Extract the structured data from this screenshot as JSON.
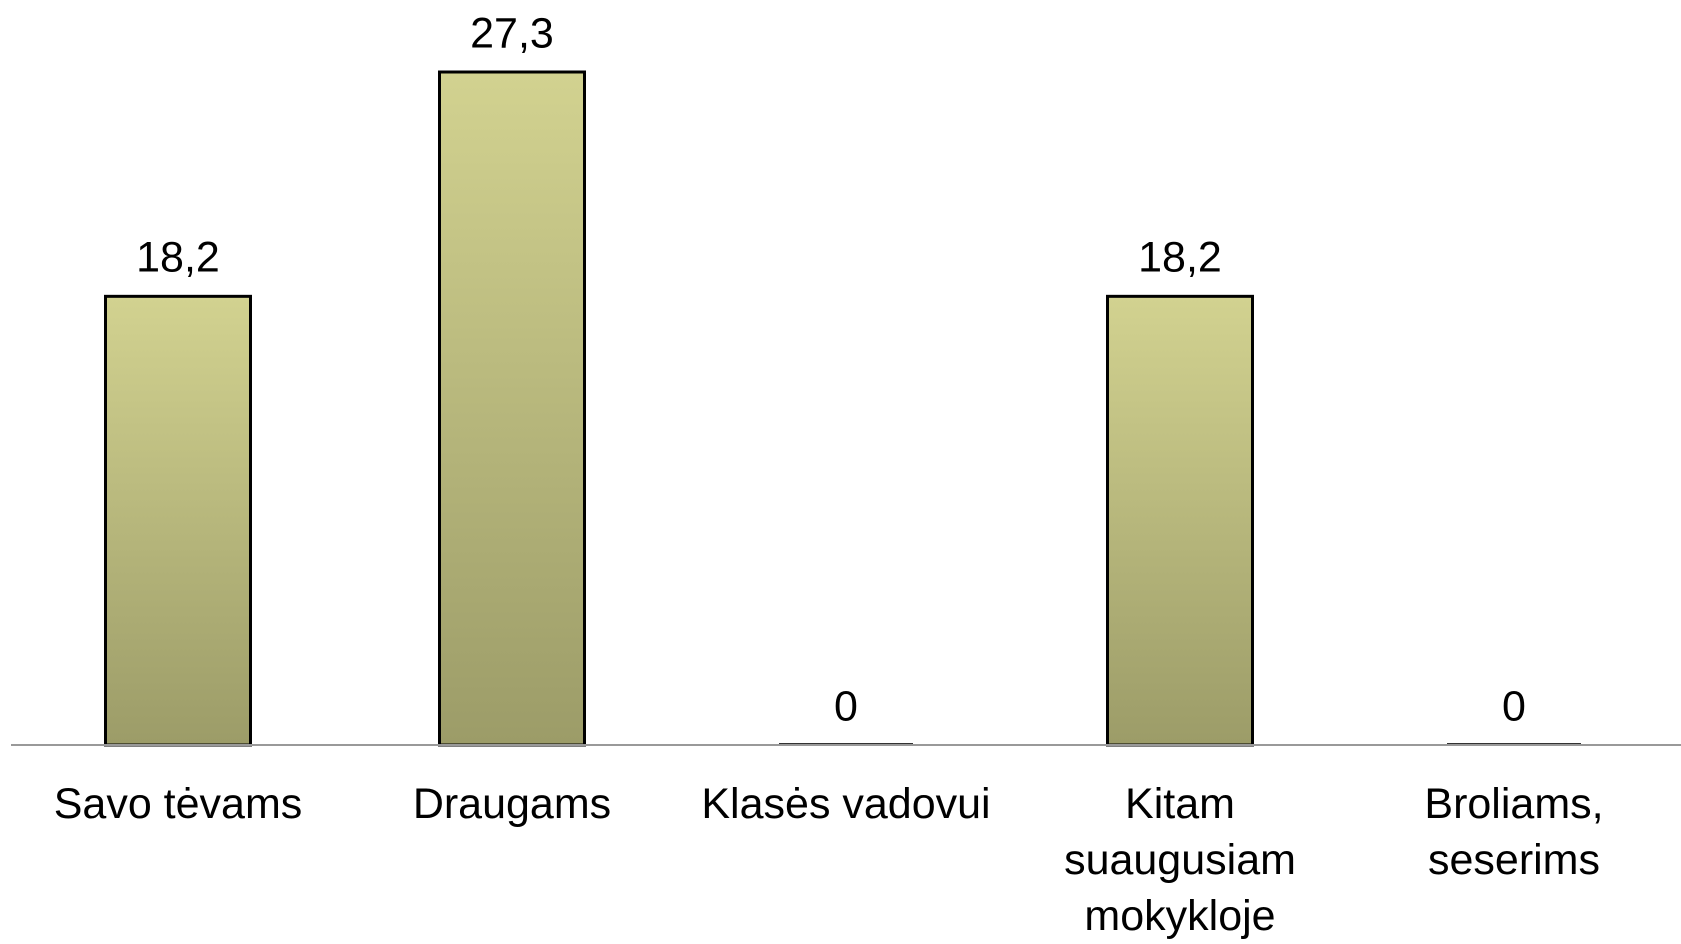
{
  "chart_data": {
    "type": "bar",
    "categories": [
      "Savo tėvams",
      "Draugams",
      "Klasės vadovui",
      "Kitam suaugusiam mokykloje",
      "Broliams, seserims"
    ],
    "values": [
      18.2,
      27.3,
      0,
      18.2,
      0
    ],
    "value_labels": [
      "18,2",
      "27,3",
      "0",
      "18,2",
      "0"
    ],
    "color": "#b8b87a"
  }
}
